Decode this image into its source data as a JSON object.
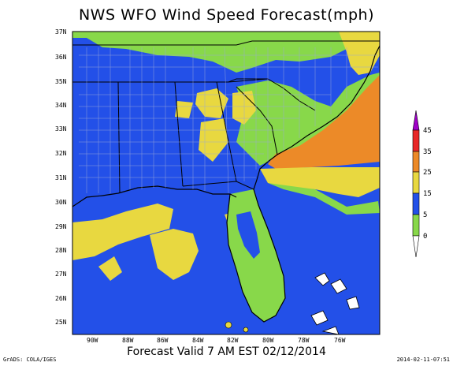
{
  "title": "NWS WFO Wind Speed Forecast(mph)",
  "subtitle": "Forecast Valid 7 AM EST 02/12/2014",
  "credit_left": "GrADS: COLA/IGES",
  "credit_right": "2014-02-11-07:51",
  "map": {
    "region": "Southeastern United States",
    "lon_labels": [
      "90W",
      "88W",
      "86W",
      "84W",
      "82W",
      "80W",
      "78W",
      "76W"
    ],
    "lat_labels": [
      "37N",
      "36N",
      "35N",
      "34N",
      "33N",
      "32N",
      "31N",
      "30N",
      "29N",
      "28N",
      "27N",
      "26N",
      "25N"
    ],
    "colors": {
      "ocean_blue": "#2350e8",
      "green": "#88d84a",
      "yellow": "#e8d840",
      "orange": "#ec8a28",
      "boundary": "#000000",
      "county": "#9aa8d8"
    }
  },
  "colorbar": {
    "labels": [
      "45",
      "35",
      "25",
      "15",
      "5",
      "0"
    ],
    "colors": [
      "#a000c8",
      "#e82828",
      "#ec8a28",
      "#e8d840",
      "#2350e8",
      "#88d84a"
    ]
  }
}
